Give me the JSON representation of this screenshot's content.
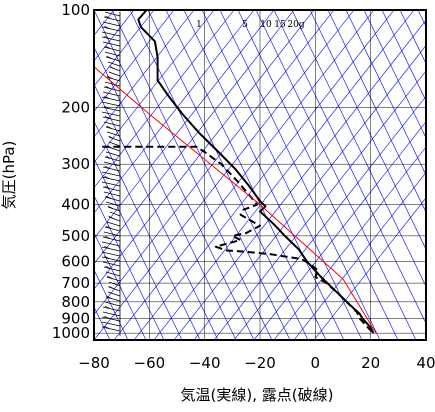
{
  "chart_data": {
    "type": "line",
    "xlabel": "気温(実線), 露点(破線)",
    "ylabel": "気圧(hPa)",
    "xlim": [
      -80,
      40
    ],
    "ylim": [
      1050,
      100
    ],
    "y_scale": "log",
    "x_ticks": [
      "−80",
      "−60",
      "−40",
      "−20",
      "0",
      "20",
      "40"
    ],
    "x_tick_values": [
      -80,
      -60,
      -40,
      -20,
      0,
      20,
      40
    ],
    "y_ticks": [
      "100",
      "200",
      "300",
      "400",
      "500",
      "600",
      "700",
      "800",
      "900",
      "1000"
    ],
    "y_tick_values": [
      100,
      200,
      300,
      400,
      500,
      600,
      700,
      800,
      900,
      1000
    ],
    "mixing_ratio_labels": [
      "1",
      "5",
      "10",
      "15",
      "20g"
    ],
    "colors": {
      "temperature": "#000000",
      "dewpoint": "#000000",
      "reference": "#ff0000",
      "adiabat": "#0000ff",
      "grid": "#000000"
    },
    "series": [
      {
        "name": "",
        "style": "solid",
        "color": "#000000",
        "points": [
          [
            -61,
            100
          ],
          [
            -64,
            107
          ],
          [
            -63,
            113
          ],
          [
            -58,
            125
          ],
          [
            -57,
            140
          ],
          [
            -57,
            165
          ],
          [
            -53,
            185
          ],
          [
            -48,
            210
          ],
          [
            -42,
            240
          ],
          [
            -35,
            275
          ],
          [
            -29,
            310
          ],
          [
            -24,
            350
          ],
          [
            -20,
            390
          ],
          [
            -18,
            405
          ],
          [
            -20,
            420
          ],
          [
            -15,
            460
          ],
          [
            -11,
            500
          ],
          [
            -6,
            550
          ],
          [
            -3,
            600
          ],
          [
            2,
            670
          ],
          [
            8,
            750
          ],
          [
            12,
            810
          ],
          [
            16,
            870
          ],
          [
            17,
            900
          ],
          [
            20,
            960
          ],
          [
            21,
            1000
          ]
        ]
      },
      {
        "name": "",
        "style": "dashed",
        "color": "#000000",
        "points": [
          [
            -77,
            265
          ],
          [
            -43,
            265
          ],
          [
            -40,
            275
          ],
          [
            -34,
            300
          ],
          [
            -28,
            340
          ],
          [
            -21,
            400
          ],
          [
            -26,
            415
          ],
          [
            -27,
            430
          ],
          [
            -23,
            450
          ],
          [
            -20,
            465
          ],
          [
            -25,
            490
          ],
          [
            -30,
            500
          ],
          [
            -27,
            515
          ],
          [
            -36,
            540
          ],
          [
            -32,
            555
          ],
          [
            -25,
            560
          ],
          [
            -16,
            570
          ],
          [
            -5,
            590
          ],
          [
            -2,
            610
          ],
          [
            1,
            640
          ],
          [
            0,
            670
          ],
          [
            4,
            700
          ],
          [
            8,
            750
          ],
          [
            12,
            810
          ],
          [
            15,
            860
          ],
          [
            16,
            900
          ],
          [
            19,
            960
          ],
          [
            21,
            1000
          ]
        ]
      },
      {
        "name": "",
        "style": "solid",
        "color": "#ff0000",
        "points": [
          [
            -80,
            150
          ],
          [
            -60,
            210
          ],
          [
            -40,
            290
          ],
          [
            -20,
            400
          ],
          [
            0,
            570
          ],
          [
            10,
            680
          ],
          [
            22,
            1000
          ]
        ]
      }
    ]
  }
}
